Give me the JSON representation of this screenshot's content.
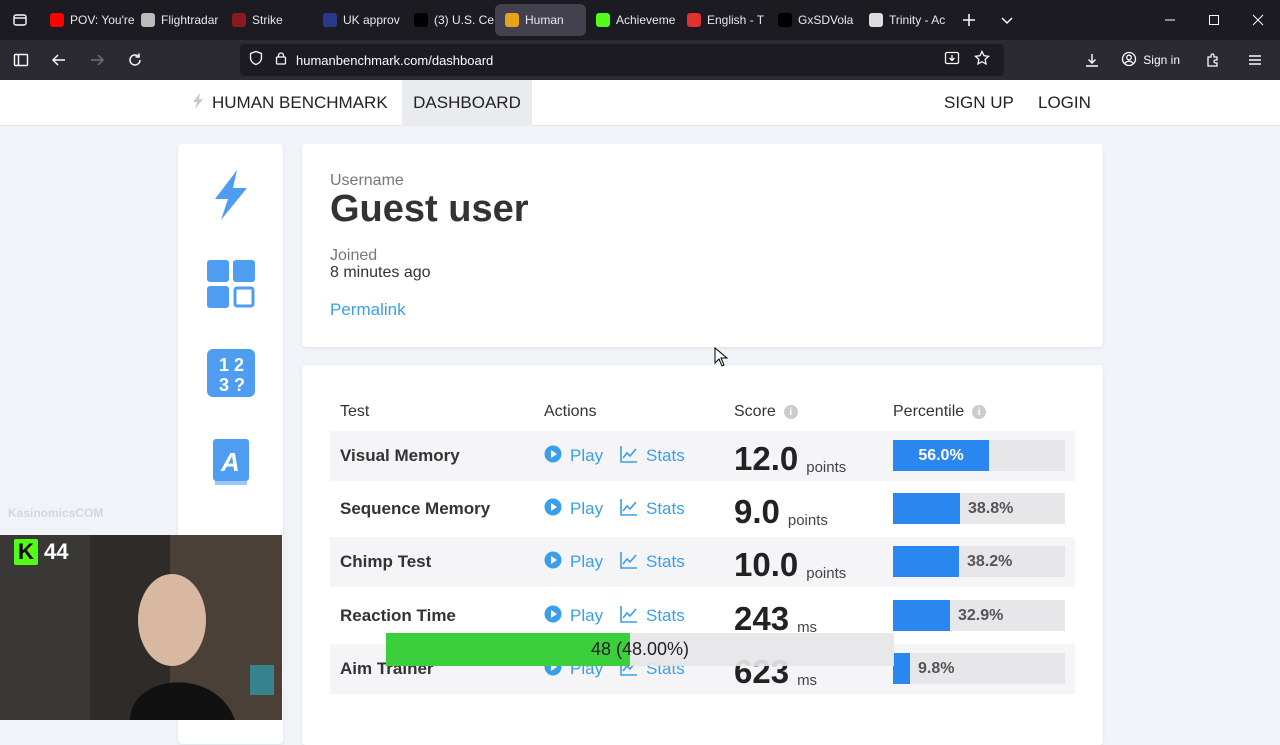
{
  "browser": {
    "tabs": [
      {
        "title": "POV: You're",
        "favicon_color": "#ff0000",
        "favicon": "youtube-icon"
      },
      {
        "title": "Flightradar",
        "favicon_color": "#bbbbbb",
        "favicon": "flightradar-icon"
      },
      {
        "title": "Strike",
        "favicon_color": "#8a1a22",
        "favicon": "strike-icon"
      },
      {
        "title": "UK approv",
        "favicon_color": "#2a3a8a",
        "favicon": "news-icon"
      },
      {
        "title": "(3) U.S. Ce",
        "favicon_color": "#000000",
        "favicon": "x-icon"
      },
      {
        "title": "Human",
        "favicon_color": "#e8a21a",
        "favicon": "humanbenchmark-icon",
        "active": true
      },
      {
        "title": "Achieveme",
        "favicon_color": "#53fc18",
        "favicon": "kick-icon"
      },
      {
        "title": "English - T",
        "favicon_color": "#e03030",
        "favicon": "translate-icon"
      },
      {
        "title": "GxSDVola",
        "favicon_color": "#000000",
        "favicon": "x-icon"
      },
      {
        "title": "Trinity - Ac",
        "favicon_color": "#dddddd",
        "favicon": "chess-icon"
      }
    ],
    "url": "humanbenchmark.com/dashboard",
    "signin_label": "Sign in"
  },
  "site": {
    "brand": "HUMAN BENCHMARK",
    "nav_dashboard": "DASHBOARD",
    "sign_up": "SIGN UP",
    "login": "LOGIN"
  },
  "profile": {
    "username_label": "Username",
    "username": "Guest user",
    "joined_label": "Joined",
    "joined": "8 minutes ago",
    "permalink": "Permalink"
  },
  "table": {
    "headers": {
      "test": "Test",
      "actions": "Actions",
      "score": "Score",
      "percentile": "Percentile"
    },
    "play_label": "Play",
    "stats_label": "Stats",
    "rows": [
      {
        "test": "Visual Memory",
        "score": "12.0",
        "unit": "points",
        "percentile": 56.0,
        "percentile_label": "56.0%"
      },
      {
        "test": "Sequence Memory",
        "score": "9.0",
        "unit": "points",
        "percentile": 38.8,
        "percentile_label": "38.8%"
      },
      {
        "test": "Chimp Test",
        "score": "10.0",
        "unit": "points",
        "percentile": 38.2,
        "percentile_label": "38.2%"
      },
      {
        "test": "Reaction Time",
        "score": "243",
        "unit": "ms",
        "percentile": 32.9,
        "percentile_label": "32.9%"
      },
      {
        "test": "Aim Trainer",
        "score": "623",
        "unit": "ms",
        "percentile": 9.8,
        "percentile_label": "9.8%"
      }
    ]
  },
  "overlay": {
    "watermark": "KasinomicsCOM",
    "viewer_count": "44",
    "goal_label": "48 (48.00%)",
    "goal_fraction": 0.48
  }
}
